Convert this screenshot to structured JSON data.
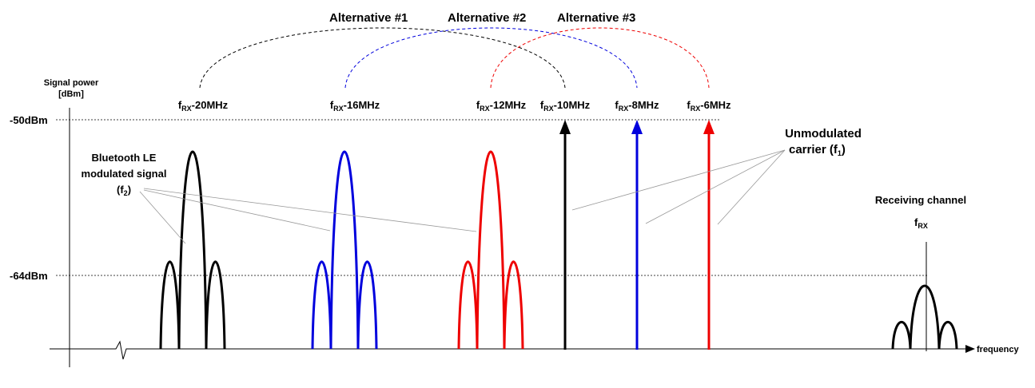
{
  "y_axis": {
    "title_line1": "Signal power",
    "title_line2": "[dBm]",
    "levels": [
      "-50dBm",
      "-64dBm"
    ]
  },
  "x_axis": {
    "label": "frequency"
  },
  "alternatives": [
    {
      "label": "Alternative #1",
      "color": "#000000",
      "signal_freq": "-20MHz",
      "carrier_freq": "-10MHz"
    },
    {
      "label": "Alternative #2",
      "color": "#0000dd",
      "signal_freq": "-16MHz",
      "carrier_freq": "-8MHz"
    },
    {
      "label": "Alternative #3",
      "color": "#ee0000",
      "signal_freq": "-12MHz",
      "carrier_freq": "-6MHz"
    }
  ],
  "freq_prefix": "f",
  "freq_subscript": "RX",
  "modulated_signal_label": [
    "Bluetooth LE",
    "modulated signal",
    "(f",
    "2",
    ")"
  ],
  "carrier_label": [
    "Unmodulated",
    "carrier (f",
    "1",
    ")"
  ],
  "receiving_channel": {
    "label": "Receiving channel",
    "prefix": "f",
    "subscript": "RX"
  }
}
